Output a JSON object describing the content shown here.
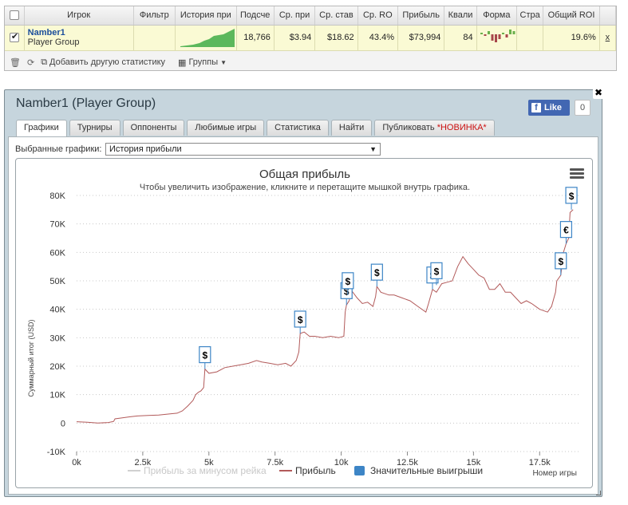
{
  "table": {
    "headers": [
      "",
      "Игрок",
      "Фильтр",
      "История при",
      "Подсче",
      "Ср. при",
      "Ср. став",
      "Ср. RO",
      "Прибыль",
      "Квали",
      "Форма",
      "Стра",
      "Общий ROI",
      ""
    ],
    "row": {
      "checked": true,
      "player_name": "Namber1",
      "player_group": "Player Group",
      "filter": "",
      "count": "18,766",
      "avg_profit": "$3.94",
      "avg_stake": "$18.62",
      "avg_roi": "43.4%",
      "profit": "$73,994",
      "quali": "84",
      "country": "",
      "total_roi": "19.6%",
      "remove": "x"
    },
    "form_values": [
      1,
      -1,
      2,
      -4,
      -5,
      -3,
      1,
      -2,
      3,
      2
    ],
    "form_colors": {
      "positive": "#6ab04c",
      "negative": "#a8464b"
    },
    "history_color": "#5cb85c"
  },
  "toolbar": {
    "add_stat_label": "Добавить другую статистику",
    "groups_label": "Группы",
    "trash_icon": "trash-icon",
    "refresh_icon": "refresh-icon"
  },
  "panel": {
    "title": "Namber1 (Player Group)",
    "fb_like": "Like",
    "fb_count": "0",
    "close": "✖",
    "tabs": [
      {
        "label": "Графики",
        "active": true
      },
      {
        "label": "Турниры"
      },
      {
        "label": "Оппоненты"
      },
      {
        "label": "Любимые игры"
      },
      {
        "label": "Статистика"
      },
      {
        "label": "Найти"
      },
      {
        "label": "Публиковать",
        "badge": "*НОВИНКА*"
      }
    ],
    "select_label": "Выбранные графики:",
    "select_value": "История прибыли"
  },
  "chart_data": {
    "type": "line",
    "title": "Общая прибыль",
    "subtitle": "Чтобы увеличить изображение, кликните и перетащите мышкой внутрь графика.",
    "ylabel": "Суммарный итог (USD)",
    "xlabel": "Номер игры",
    "xlim": [
      0,
      19000
    ],
    "ylim": [
      -10000,
      80000
    ],
    "y_ticks": [
      "-10K",
      "0",
      "10K",
      "20K",
      "30K",
      "40K",
      "50K",
      "60K",
      "70K",
      "80K"
    ],
    "x_ticks": [
      "0k",
      "2.5k",
      "5k",
      "7.5k",
      "10k",
      "12.5k",
      "15k",
      "17.5k"
    ],
    "grid": true,
    "legend": [
      {
        "name": "Прибыль за минусом рейка",
        "color": "#d0d0d0"
      },
      {
        "name": "Прибыль",
        "color": "#b25a5a"
      },
      {
        "name": "Значительные выигрыши",
        "color": "#3d85c6"
      }
    ],
    "series": [
      {
        "name": "Прибыль",
        "color": "#b25a5a",
        "points": [
          [
            0,
            500
          ],
          [
            400,
            300
          ],
          [
            800,
            0
          ],
          [
            1200,
            200
          ],
          [
            1400,
            600
          ],
          [
            1450,
            1500
          ],
          [
            1700,
            1800
          ],
          [
            2000,
            2200
          ],
          [
            2300,
            2500
          ],
          [
            2700,
            2700
          ],
          [
            3100,
            2800
          ],
          [
            3500,
            3200
          ],
          [
            3800,
            3500
          ],
          [
            4000,
            4300
          ],
          [
            4200,
            6000
          ],
          [
            4400,
            8000
          ],
          [
            4500,
            10000
          ],
          [
            4600,
            10800
          ],
          [
            4700,
            11300
          ],
          [
            4800,
            12500
          ],
          [
            4850,
            19000
          ],
          [
            5000,
            17500
          ],
          [
            5300,
            18000
          ],
          [
            5600,
            19500
          ],
          [
            5900,
            20000
          ],
          [
            6200,
            20500
          ],
          [
            6500,
            21000
          ],
          [
            6800,
            22000
          ],
          [
            7000,
            21500
          ],
          [
            7300,
            21000
          ],
          [
            7600,
            20500
          ],
          [
            7900,
            21000
          ],
          [
            8100,
            20000
          ],
          [
            8300,
            22000
          ],
          [
            8400,
            25000
          ],
          [
            8450,
            31500
          ],
          [
            8600,
            32000
          ],
          [
            8800,
            30500
          ],
          [
            9000,
            30500
          ],
          [
            9300,
            30000
          ],
          [
            9600,
            30500
          ],
          [
            9900,
            30000
          ],
          [
            10100,
            30500
          ],
          [
            10150,
            39000
          ],
          [
            10200,
            41500
          ],
          [
            10300,
            43000
          ],
          [
            10400,
            46500
          ],
          [
            10600,
            44000
          ],
          [
            10800,
            42000
          ],
          [
            11000,
            42500
          ],
          [
            11200,
            41000
          ],
          [
            11300,
            44500
          ],
          [
            11350,
            48000
          ],
          [
            11500,
            46000
          ],
          [
            11800,
            45000
          ],
          [
            12000,
            45000
          ],
          [
            12300,
            44000
          ],
          [
            12600,
            43000
          ],
          [
            12900,
            41000
          ],
          [
            13200,
            39000
          ],
          [
            13300,
            42000
          ],
          [
            13450,
            47000
          ],
          [
            13600,
            46000
          ],
          [
            13800,
            49000
          ],
          [
            14000,
            49500
          ],
          [
            14200,
            50000
          ],
          [
            14400,
            55000
          ],
          [
            14600,
            58500
          ],
          [
            14800,
            56000
          ],
          [
            15000,
            54000
          ],
          [
            15200,
            52000
          ],
          [
            15400,
            51000
          ],
          [
            15600,
            47000
          ],
          [
            15800,
            47000
          ],
          [
            16000,
            49000
          ],
          [
            16200,
            46000
          ],
          [
            16400,
            46000
          ],
          [
            16600,
            44000
          ],
          [
            16800,
            42000
          ],
          [
            17000,
            43000
          ],
          [
            17200,
            42000
          ],
          [
            17500,
            40000
          ],
          [
            17800,
            39000
          ],
          [
            17950,
            41000
          ],
          [
            18100,
            46000
          ],
          [
            18150,
            50000
          ],
          [
            18300,
            52000
          ],
          [
            18400,
            60000
          ],
          [
            18500,
            63000
          ],
          [
            18600,
            65000
          ],
          [
            18650,
            74000
          ],
          [
            18766,
            75000
          ]
        ]
      }
    ],
    "flags": [
      {
        "x": 4850,
        "y": 19000,
        "symbol": "$"
      },
      {
        "x": 8450,
        "y": 31500,
        "symbol": "$"
      },
      {
        "x": 10200,
        "y": 41500,
        "symbol": "$"
      },
      {
        "x": 10250,
        "y": 45000,
        "symbol": "$"
      },
      {
        "x": 11350,
        "y": 48000,
        "symbol": "$"
      },
      {
        "x": 13450,
        "y": 47000,
        "symbol": "$"
      },
      {
        "x": 13600,
        "y": 48500,
        "symbol": "$"
      },
      {
        "x": 18300,
        "y": 52000,
        "symbol": "$"
      },
      {
        "x": 18500,
        "y": 63000,
        "symbol": "€"
      },
      {
        "x": 18700,
        "y": 75000,
        "symbol": "$"
      }
    ]
  }
}
